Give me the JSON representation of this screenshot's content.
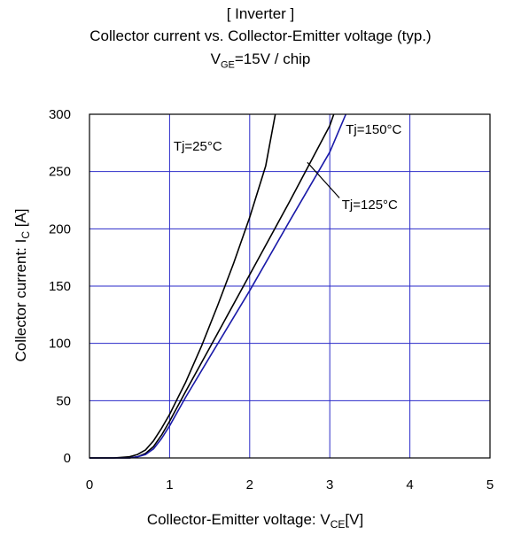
{
  "chart_data": {
    "type": "line",
    "title_lines": [
      "[ Inverter ]",
      "Collector current vs. Collector-Emitter voltage (typ.)"
    ],
    "subtitle": {
      "main": "V",
      "sub": "GE",
      "rest": "=15V / chip"
    },
    "xlabel": {
      "main": "Collector-Emitter voltage: V",
      "sub": "CE",
      "rest": "[V]"
    },
    "ylabel": {
      "main": "Collector current: I",
      "sub": "C",
      "rest": " [A]"
    },
    "xlim": [
      0,
      5
    ],
    "ylim": [
      0,
      300
    ],
    "xticks": [
      0,
      1,
      2,
      3,
      4,
      5
    ],
    "yticks": [
      0,
      50,
      100,
      150,
      200,
      250,
      300
    ],
    "grid": true,
    "colors": {
      "grid": "#2a2ac8",
      "series_black": "#000000",
      "series_blue": "#1a1aa8"
    },
    "series": [
      {
        "name": "Tj=25°C",
        "color": "#000000",
        "x": [
          0.0,
          0.3,
          0.5,
          0.6,
          0.7,
          0.8,
          0.9,
          1.0,
          1.1,
          1.2,
          1.4,
          1.6,
          1.8,
          2.0,
          2.2,
          2.32
        ],
        "y": [
          0,
          0,
          1,
          3,
          7,
          15,
          26,
          38,
          52,
          66,
          98,
          133,
          170,
          210,
          255,
          300
        ]
      },
      {
        "name": "Tj=125°C",
        "color": "#000000",
        "x": [
          0.0,
          0.3,
          0.5,
          0.6,
          0.7,
          0.8,
          0.9,
          1.0,
          1.2,
          1.5,
          2.0,
          2.5,
          3.0,
          3.05
        ],
        "y": [
          0,
          0,
          0,
          1,
          4,
          10,
          20,
          32,
          58,
          96,
          160,
          224,
          290,
          300
        ]
      },
      {
        "name": "Tj=150°C",
        "color": "#1a1aa8",
        "x": [
          0.0,
          0.3,
          0.5,
          0.6,
          0.7,
          0.8,
          0.9,
          1.0,
          1.2,
          1.5,
          2.0,
          2.5,
          3.0,
          3.2
        ],
        "y": [
          0,
          0,
          0,
          1,
          3,
          8,
          17,
          28,
          53,
          88,
          146,
          207,
          267,
          300
        ]
      }
    ],
    "annotations": [
      {
        "text": "Tj=25°C",
        "x": 1.05,
        "y": 272
      },
      {
        "text": "Tj=150°C",
        "x": 3.2,
        "y": 287
      },
      {
        "text": "Tj=125°C",
        "x": 3.15,
        "y": 221
      }
    ]
  }
}
